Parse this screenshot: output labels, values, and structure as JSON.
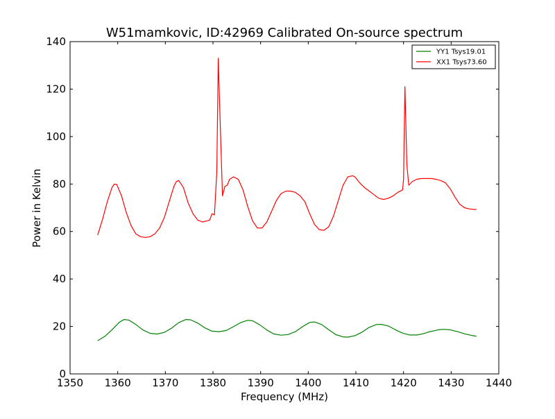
{
  "chart_data": {
    "type": "line",
    "title": "W51mamkovic, ID:42969 Calibrated On-source spectrum",
    "xlabel": "Frequency (MHz)",
    "ylabel": "Power in Kelvin",
    "xlim": [
      1350,
      1440
    ],
    "ylim": [
      0,
      140
    ],
    "xticks": [
      1350,
      1360,
      1370,
      1380,
      1390,
      1400,
      1410,
      1420,
      1430,
      1440
    ],
    "yticks": [
      0,
      20,
      40,
      60,
      80,
      100,
      120,
      140
    ],
    "xtick_labels": [
      "1350",
      "1360",
      "1370",
      "1380",
      "1390",
      "1400",
      "1410",
      "1420",
      "1430",
      "1440"
    ],
    "ytick_labels": [
      "0",
      "20",
      "40",
      "60",
      "80",
      "100",
      "120",
      "140"
    ],
    "grid": false,
    "legend_position": "top-right",
    "series": [
      {
        "name": "YY1 Tsys19.01",
        "color": "#008000",
        "x": [
          1355.8,
          1357.3,
          1358.8,
          1360.3,
          1361.3,
          1362.3,
          1363.8,
          1365.3,
          1366.8,
          1368.3,
          1369.8,
          1371.3,
          1372.8,
          1374.3,
          1375.3,
          1376.8,
          1378.3,
          1379.8,
          1381.3,
          1382.8,
          1384.3,
          1385.8,
          1387.3,
          1388.3,
          1389.8,
          1391.3,
          1392.8,
          1394.3,
          1395.8,
          1397.3,
          1398.8,
          1400.3,
          1401.3,
          1402.8,
          1404.3,
          1405.8,
          1407.3,
          1408.3,
          1409.8,
          1411.3,
          1412.8,
          1414.3,
          1415.3,
          1416.8,
          1418.3,
          1419.8,
          1421.3,
          1422.8,
          1424.3,
          1425.3,
          1426.3,
          1427.3,
          1428.3,
          1429.8,
          1431.3,
          1432.8,
          1434.3,
          1435.3
        ],
        "y": [
          14.0,
          15.8,
          18.6,
          21.7,
          22.9,
          22.7,
          20.8,
          18.5,
          17.1,
          16.8,
          17.5,
          19.3,
          21.6,
          22.9,
          22.8,
          21.4,
          19.4,
          18.0,
          17.8,
          18.3,
          19.9,
          21.6,
          22.6,
          22.4,
          20.7,
          18.5,
          16.8,
          16.3,
          16.6,
          17.8,
          19.9,
          21.7,
          21.9,
          20.8,
          18.6,
          16.5,
          15.6,
          15.5,
          16.1,
          17.6,
          19.6,
          20.8,
          20.9,
          20.2,
          18.6,
          17.2,
          16.4,
          16.4,
          17.0,
          17.7,
          18.1,
          18.6,
          18.8,
          18.6,
          17.8,
          16.9,
          16.2,
          15.9
        ]
      },
      {
        "name": "XX1 Tsys73.60",
        "color": "#ff0000",
        "x": [
          1355.8,
          1356.8,
          1357.8,
          1358.8,
          1359.3,
          1359.8,
          1360.8,
          1361.8,
          1362.8,
          1363.8,
          1364.8,
          1365.8,
          1366.8,
          1367.8,
          1368.8,
          1369.8,
          1370.8,
          1371.8,
          1372.3,
          1372.8,
          1373.8,
          1374.8,
          1375.8,
          1376.8,
          1377.8,
          1378.8,
          1379.3,
          1379.8,
          1380.3,
          1380.8,
          1381.1,
          1381.6,
          1382.0,
          1382.5,
          1383.0,
          1383.5,
          1384.3,
          1385.3,
          1386.3,
          1387.3,
          1388.3,
          1389.3,
          1390.3,
          1391.3,
          1392.3,
          1393.3,
          1394.3,
          1395.3,
          1396.3,
          1397.3,
          1398.3,
          1399.3,
          1400.3,
          1401.3,
          1402.3,
          1403.3,
          1404.3,
          1405.3,
          1406.3,
          1407.3,
          1408.3,
          1409.3,
          1409.8,
          1410.8,
          1411.8,
          1412.8,
          1413.8,
          1414.8,
          1415.8,
          1416.8,
          1417.8,
          1418.8,
          1419.8,
          1420.0,
          1420.3,
          1420.7,
          1421.1,
          1421.8,
          1422.8,
          1423.8,
          1424.8,
          1425.8,
          1426.8,
          1427.8,
          1428.8,
          1429.8,
          1430.8,
          1431.8,
          1432.8,
          1433.8,
          1434.8,
          1435.3
        ],
        "y": [
          58.5,
          65.0,
          72.5,
          78.5,
          80.0,
          79.8,
          75.0,
          68.0,
          62.5,
          59.0,
          57.8,
          57.5,
          57.8,
          59.0,
          61.5,
          66.0,
          72.5,
          79.0,
          81.0,
          81.5,
          78.5,
          72.0,
          67.5,
          64.8,
          64.0,
          64.5,
          64.8,
          67.5,
          67.0,
          85.0,
          133.0,
          100.0,
          75.0,
          79.0,
          79.5,
          82.0,
          83.0,
          82.0,
          77.5,
          70.5,
          64.5,
          61.5,
          61.5,
          64.0,
          68.5,
          73.0,
          76.0,
          77.0,
          77.0,
          76.5,
          75.0,
          72.5,
          67.5,
          63.0,
          60.8,
          60.5,
          62.0,
          66.5,
          73.0,
          79.5,
          83.0,
          83.5,
          83.0,
          80.5,
          78.5,
          77.0,
          75.5,
          74.0,
          73.5,
          74.0,
          75.0,
          76.5,
          77.5,
          82.0,
          121.0,
          88.0,
          79.5,
          81.0,
          82.0,
          82.3,
          82.3,
          82.3,
          82.0,
          81.5,
          80.5,
          78.0,
          74.5,
          71.5,
          70.0,
          69.5,
          69.3,
          69.3
        ]
      }
    ]
  }
}
